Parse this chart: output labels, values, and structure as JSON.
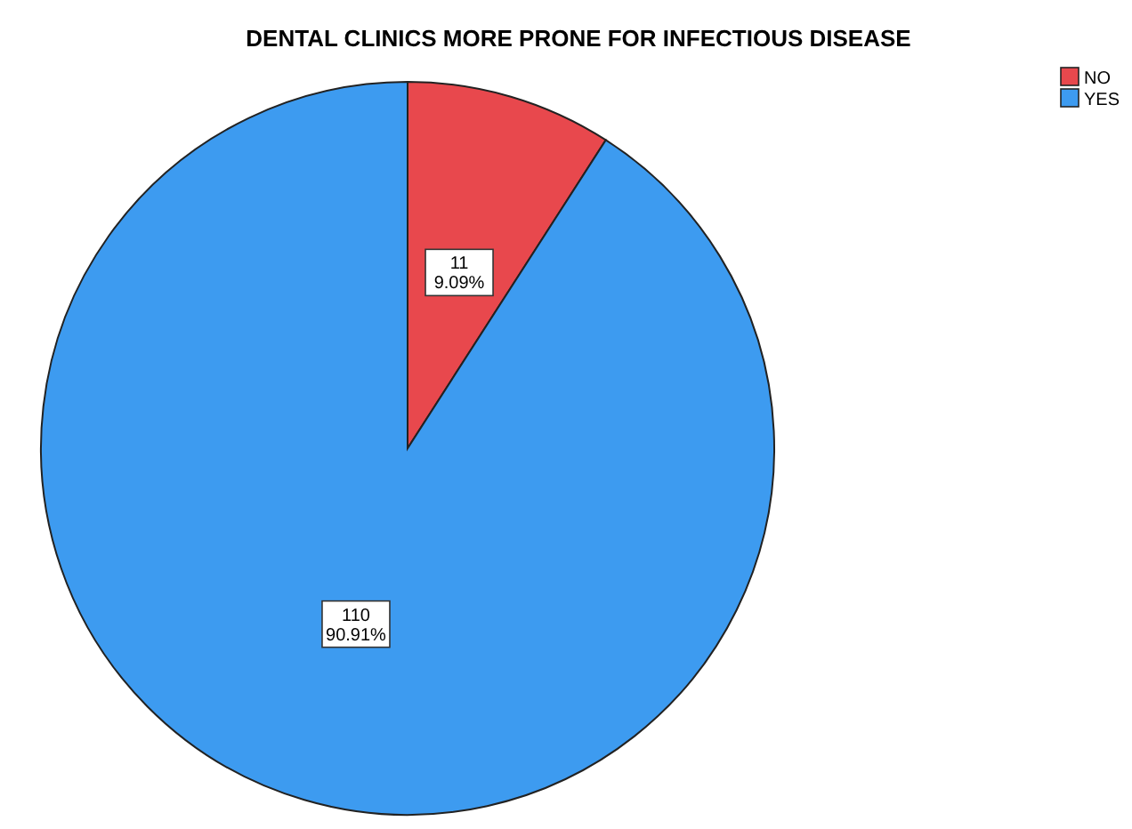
{
  "chart_data": {
    "type": "pie",
    "title": "DENTAL CLINICS MORE PRONE FOR INFECTIOUS DISEASE",
    "categories": [
      "NO",
      "YES"
    ],
    "values": [
      11,
      110
    ],
    "colors": [
      "#e8484d",
      "#3d9bf0"
    ],
    "value_labels": [
      "11\n9.09%",
      "110\n90.91%"
    ],
    "legend": "top right"
  }
}
